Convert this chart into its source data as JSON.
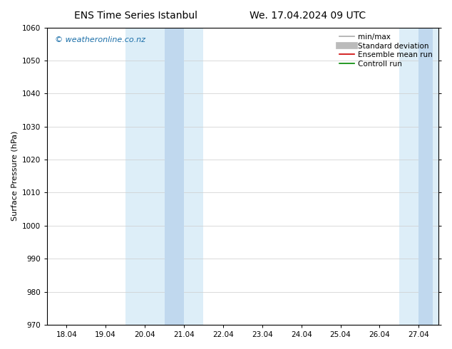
{
  "title_left": "ENS Time Series Istanbul",
  "title_right": "We. 17.04.2024 09 UTC",
  "ylabel": "Surface Pressure (hPa)",
  "ylim": [
    970,
    1060
  ],
  "yticks": [
    970,
    980,
    990,
    1000,
    1010,
    1020,
    1030,
    1040,
    1050,
    1060
  ],
  "xtick_labels": [
    "18.04",
    "19.04",
    "20.04",
    "21.04",
    "22.04",
    "23.04",
    "24.04",
    "25.04",
    "26.04",
    "27.04"
  ],
  "xtick_positions": [
    0,
    1,
    2,
    3,
    4,
    5,
    6,
    7,
    8,
    9
  ],
  "xlim": [
    -0.5,
    9.5
  ],
  "shaded_regions_light": [
    {
      "x_start": 1.5,
      "x_end": 3.5,
      "color": "#ddeef8"
    },
    {
      "x_start": 8.5,
      "x_end": 9.5,
      "color": "#ddeef8"
    }
  ],
  "shaded_regions_dark": [
    {
      "x_start": 2.5,
      "x_end": 3.0,
      "color": "#c0d8ee"
    },
    {
      "x_start": 9.0,
      "x_end": 9.35,
      "color": "#c0d8ee"
    }
  ],
  "watermark": "© weatheronline.co.nz",
  "watermark_color": "#1a6ea8",
  "legend_entries": [
    {
      "label": "min/max",
      "color": "#aaaaaa",
      "lw": 1.2,
      "type": "line"
    },
    {
      "label": "Standard deviation",
      "color": "#bbbbbb",
      "lw": 7,
      "type": "line"
    },
    {
      "label": "Ensemble mean run",
      "color": "#cc0000",
      "lw": 1.2,
      "type": "line"
    },
    {
      "label": "Controll run",
      "color": "#008800",
      "lw": 1.2,
      "type": "line"
    }
  ],
  "grid_color": "#cccccc",
  "bg_color": "#ffffff",
  "plot_bg_color": "#ffffff",
  "title_fontsize": 10,
  "ylabel_fontsize": 8,
  "tick_fontsize": 7.5,
  "legend_fontsize": 7.5,
  "watermark_fontsize": 8
}
